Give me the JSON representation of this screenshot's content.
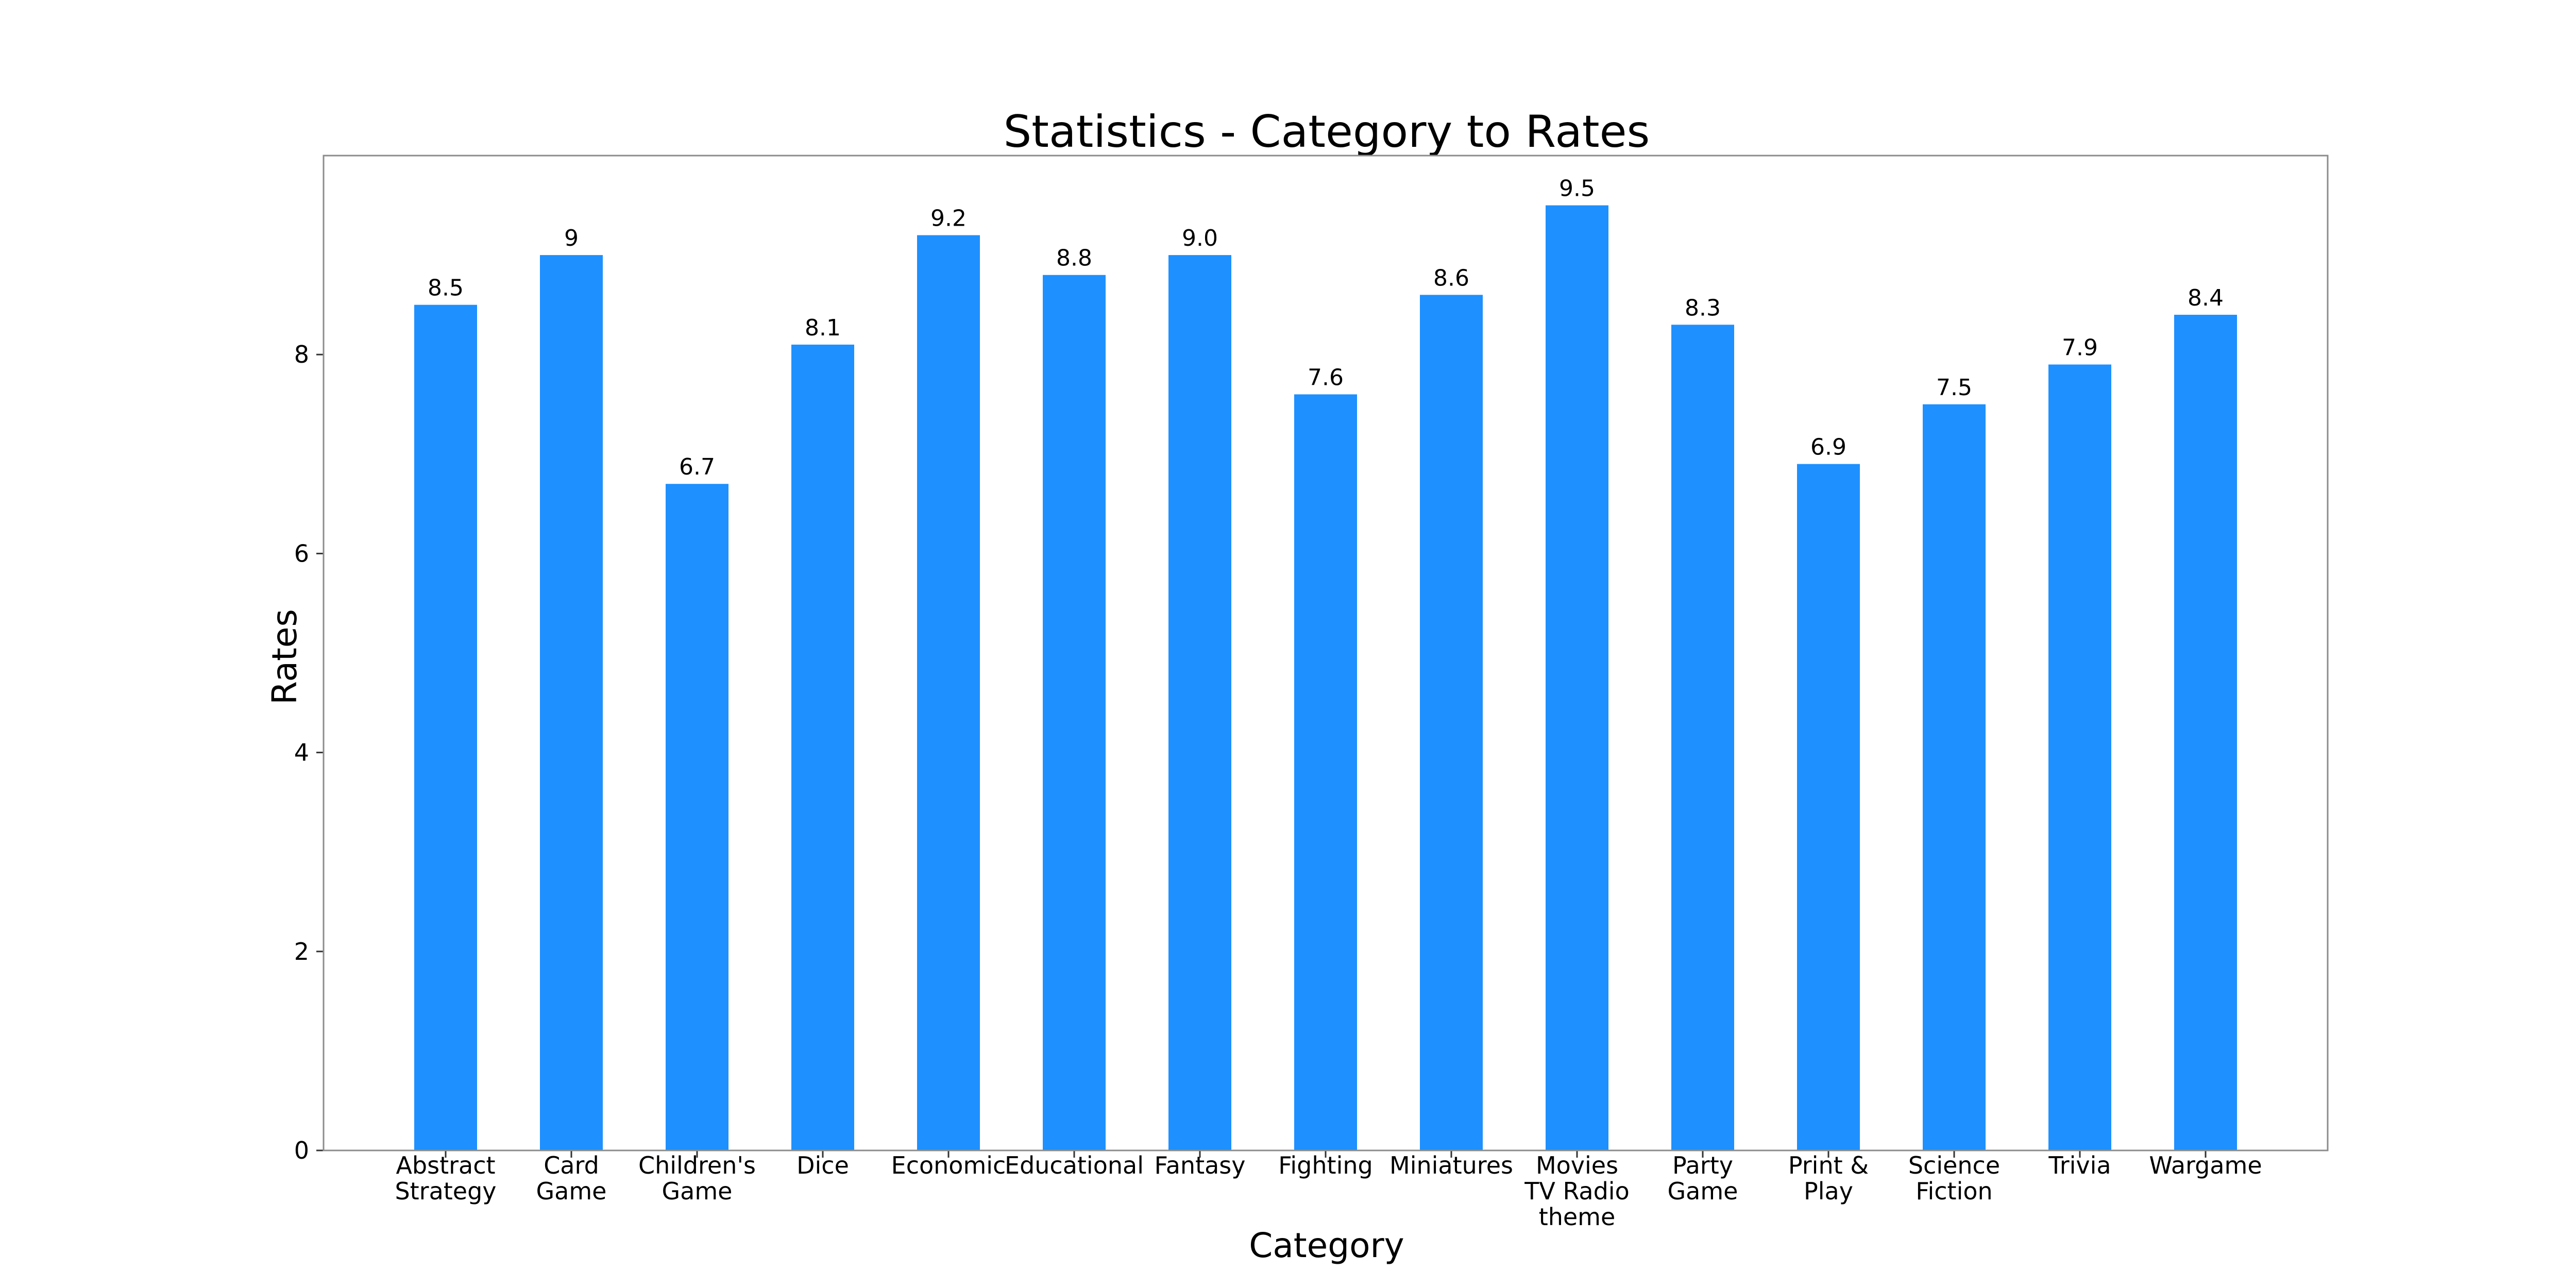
{
  "chart_data": {
    "type": "bar",
    "title": "Statistics - Category to Rates",
    "xlabel": "Category",
    "ylabel": "Rates",
    "categories": [
      "Abstract Strategy",
      "Card Game",
      "Children's Game",
      "Dice",
      "Economic",
      "Educational",
      "Fantasy",
      "Fighting",
      "Miniatures",
      "Movies TV Radio theme",
      "Party Game",
      "Print & Play",
      "Science Fiction",
      "Trivia",
      "Wargame"
    ],
    "category_label_lines": [
      [
        "Abstract",
        "Strategy"
      ],
      [
        "Card",
        "Game"
      ],
      [
        "Children's",
        "Game"
      ],
      [
        "Dice"
      ],
      [
        "Economic"
      ],
      [
        "Educational"
      ],
      [
        "Fantasy"
      ],
      [
        "Fighting"
      ],
      [
        "Miniatures"
      ],
      [
        "Movies",
        "TV Radio",
        "theme"
      ],
      [
        "Party",
        "Game"
      ],
      [
        "Print &",
        "Play"
      ],
      [
        "Science",
        "Fiction"
      ],
      [
        "Trivia"
      ],
      [
        "Wargame"
      ]
    ],
    "values": [
      8.5,
      9,
      6.7,
      8.1,
      9.2,
      8.8,
      9.0,
      7.6,
      8.6,
      9.5,
      8.3,
      6.9,
      7.5,
      7.9,
      8.4
    ],
    "value_labels": [
      "8.5",
      "9",
      "6.7",
      "8.1",
      "9.2",
      "8.8",
      "9.0",
      "7.6",
      "8.6",
      "9.5",
      "8.3",
      "6.9",
      "7.5",
      "7.9",
      "8.4"
    ],
    "ylim": [
      0,
      10
    ],
    "yticks": [
      "0",
      "2",
      "4",
      "6",
      "8"
    ],
    "bar_color": "#1e90ff",
    "grid": false,
    "legend": false
  }
}
